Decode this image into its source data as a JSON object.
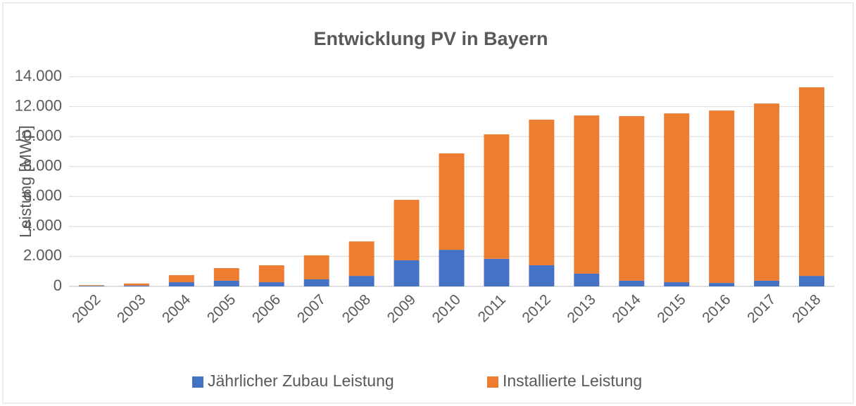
{
  "chart_data": {
    "type": "stacked_bar",
    "title": "Entwicklung PV in Bayern",
    "y_label": "Leistung [MWp]",
    "categories": [
      "2002",
      "2003",
      "2004",
      "2005",
      "2006",
      "2007",
      "2008",
      "2009",
      "2010",
      "2011",
      "2012",
      "2013",
      "2014",
      "2015",
      "2016",
      "2017",
      "2018"
    ],
    "series": [
      {
        "name": "Jährlicher Zubau Leistung",
        "color": "#4472c4",
        "values": [
          40,
          60,
          280,
          380,
          280,
          470,
          700,
          1740,
          2440,
          1840,
          1410,
          850,
          380,
          280,
          230,
          380,
          700
        ]
      },
      {
        "name": "Installierte Leistung",
        "color": "#ed7d31",
        "values": [
          40,
          130,
          470,
          840,
          1130,
          1600,
          2300,
          4040,
          6440,
          8310,
          9720,
          10560,
          10990,
          11270,
          11510,
          11830,
          12590
        ]
      }
    ],
    "ylim": [
      0,
      14000
    ],
    "yticks": [
      0,
      {
        "value": 2000,
        "label": "2.000"
      },
      {
        "value": 4000,
        "label": "4.000"
      },
      {
        "value": 6000,
        "label": "6.000"
      },
      {
        "value": 8000,
        "label": "8.000"
      },
      {
        "value": 10000,
        "label": "10.000"
      },
      {
        "value": 12000,
        "label": "12.000"
      },
      {
        "value": 14000,
        "label": "14.000"
      }
    ],
    "grid": true,
    "legend": "bottom"
  }
}
